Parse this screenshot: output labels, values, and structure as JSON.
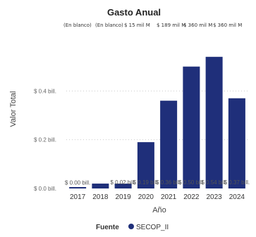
{
  "chart_data": {
    "type": "bar",
    "title": "Gasto Anual",
    "xlabel": "Año",
    "ylabel": "Valor Total",
    "categories": [
      "2017",
      "2018",
      "2019",
      "2020",
      "2021",
      "2022",
      "2023",
      "2024"
    ],
    "series": [
      {
        "name": "SECOP_II",
        "values": [
          0.001,
          0.02,
          0.02,
          0.19,
          0.36,
          0.5,
          0.54,
          0.37
        ],
        "value_labels": [
          "$ 0.00 bill.",
          "",
          "$ 0.02 bill.",
          "$ 0.19 bill.",
          "$ 0.36 bill.",
          "$ 0.50 bill.",
          "$ 0.54 bill.",
          "$ 0.37 bill."
        ]
      }
    ],
    "top_labels": [
      "(En blanco)",
      "(En blanco)",
      "$ 15 mil M",
      "$ 189 mil M",
      "$ 360 mil M",
      "$ 360 mil M"
    ],
    "ylim": [
      0,
      0.6
    ],
    "yticks": [
      {
        "value": 0,
        "label": "$ 0.0 bill."
      },
      {
        "value": 0.2,
        "label": "$ 0.2 bill."
      },
      {
        "value": 0.4,
        "label": "$ 0.4 bill."
      }
    ],
    "grid": true,
    "legend": {
      "title": "Fuente",
      "position": "bottom"
    },
    "colors": {
      "bar": "#1f2f7a",
      "grid": "#cccccc"
    }
  }
}
